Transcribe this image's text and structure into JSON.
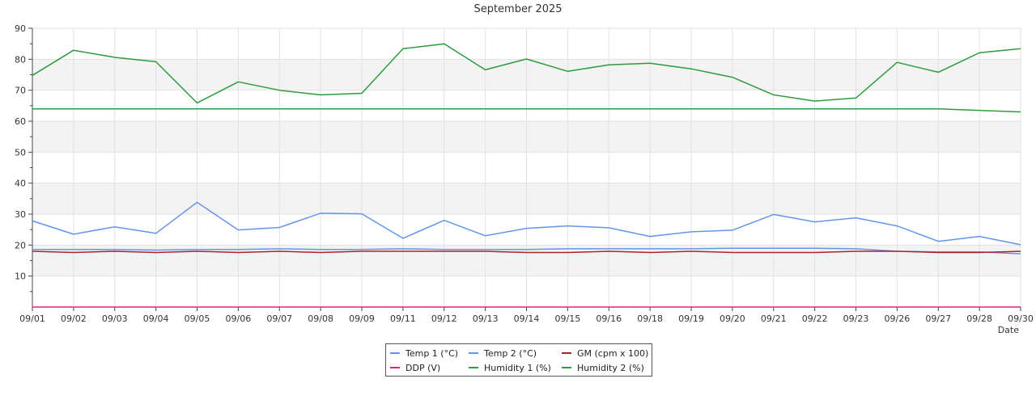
{
  "chart_data": {
    "type": "line",
    "title": "September 2025",
    "xlabel": "Date",
    "ylabel": "",
    "ylim": [
      0,
      90
    ],
    "yticks": [
      10,
      20,
      30,
      40,
      50,
      60,
      70,
      80,
      90
    ],
    "grid": true,
    "legend_position": "bottom-center",
    "categories": [
      "09/01",
      "09/02",
      "09/03",
      "09/04",
      "09/05",
      "09/06",
      "09/07",
      "09/08",
      "09/09",
      "09/11",
      "09/12",
      "09/13",
      "09/14",
      "09/15",
      "09/16",
      "09/18",
      "09/19",
      "09/20",
      "09/21",
      "09/22",
      "09/23",
      "09/26",
      "09/27",
      "09/28",
      "09/30"
    ],
    "series": [
      {
        "name": "Temp 1 (°C)",
        "color": "#6495ED",
        "values": [
          27.8,
          23.5,
          25.9,
          23.8,
          33.8,
          24.9,
          25.7,
          30.3,
          30.1,
          22.2,
          28.0,
          23.0,
          25.4,
          26.2,
          25.6,
          22.8,
          24.3,
          24.8,
          29.9,
          27.5,
          28.8,
          26.2,
          21.2,
          22.8,
          20.1
        ]
      },
      {
        "name": "Temp 2 (°C)",
        "color": "#6495ED",
        "values": [
          18.6,
          18.6,
          18.6,
          18.4,
          18.6,
          18.6,
          18.8,
          18.6,
          18.6,
          18.8,
          18.6,
          18.6,
          18.6,
          18.8,
          18.8,
          18.8,
          18.8,
          19.0,
          19.0,
          19.0,
          18.8,
          18.0,
          17.8,
          17.8,
          17.2
        ]
      },
      {
        "name": "GM (cpm x 100)",
        "color": "#B22222",
        "values": [
          18.0,
          17.6,
          18.0,
          17.6,
          18.0,
          17.6,
          18.0,
          17.6,
          18.0,
          18.0,
          18.0,
          18.0,
          17.6,
          17.6,
          18.0,
          17.6,
          18.0,
          17.6,
          17.6,
          17.6,
          18.0,
          18.0,
          17.6,
          17.6,
          18.0
        ]
      },
      {
        "name": "DDP (V)",
        "color": "#E0207A",
        "values": [
          0,
          0,
          0,
          0,
          0,
          0,
          0,
          0,
          0,
          0,
          0,
          0,
          0,
          0,
          0,
          0,
          0,
          0,
          0,
          0,
          0,
          0,
          0,
          0,
          0
        ]
      },
      {
        "name": "Humidity 1 (%)",
        "color": "#2E9B3E",
        "values": [
          74.8,
          82.9,
          80.6,
          79.2,
          65.9,
          72.7,
          70.0,
          68.5,
          69.0,
          83.4,
          85.0,
          76.6,
          80.1,
          76.1,
          78.2,
          78.7,
          76.9,
          74.2,
          68.5,
          66.5,
          67.5,
          79.0,
          75.8,
          82.1,
          83.4
        ]
      },
      {
        "name": "Humidity 2 (%)",
        "color": "#2E9B3E",
        "values": [
          64.0,
          64.0,
          64.0,
          64.0,
          64.0,
          64.0,
          64.0,
          64.0,
          64.0,
          64.0,
          64.0,
          64.0,
          64.0,
          64.0,
          64.0,
          64.0,
          64.0,
          64.0,
          64.0,
          64.0,
          64.0,
          64.0,
          64.0,
          63.5,
          63.0
        ]
      }
    ],
    "legend_rows": [
      [
        "Temp 1 (°C)",
        "Temp 2 (°C)",
        "GM (cpm x 100)"
      ],
      [
        "DDP (V)",
        "Humidity 1 (%)",
        "Humidity 2 (%)"
      ]
    ]
  }
}
